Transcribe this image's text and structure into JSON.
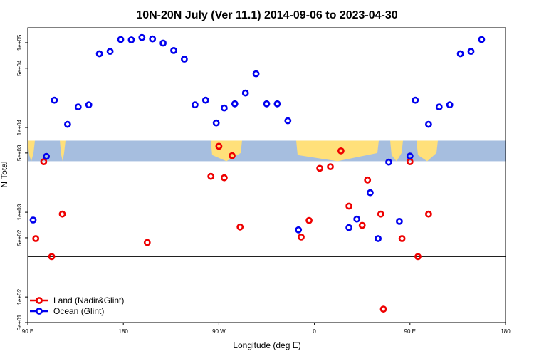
{
  "chart_data": {
    "type": "scatter",
    "title": "10N-20N July (Ver 11.1)   2014-09-06 to 2023-04-30",
    "xlabel": "Longitude (deg E)",
    "ylabel": "N Total",
    "xlim": [
      90,
      270
    ],
    "yscale": "log",
    "ylim": [
      50,
      150000
    ],
    "x_ticks": [
      {
        "value": 90,
        "label": "90 E"
      },
      {
        "value": 126,
        "label": "180"
      },
      {
        "value": 162,
        "label": "90 W"
      },
      {
        "value": 198,
        "label": "0"
      },
      {
        "value": 234,
        "label": "90 E"
      },
      {
        "value": 270,
        "label": "180"
      }
    ],
    "y_ticks": [
      {
        "value": 50,
        "label": "5e+01"
      },
      {
        "value": 100,
        "label": "1e+02"
      },
      {
        "value": 500,
        "label": "5e+02"
      },
      {
        "value": 1000,
        "label": "1e+03"
      },
      {
        "value": 5000,
        "label": "5e+03"
      },
      {
        "value": 10000,
        "label": "1e+04"
      },
      {
        "value": 50000,
        "label": "5e+04"
      },
      {
        "value": 100000,
        "label": "1e+05"
      }
    ],
    "reference_line": 300,
    "map_band": {
      "ymin": 4000,
      "ymax": 7000
    },
    "legend_position": "bottom-left",
    "series": [
      {
        "name": "Land (Nadir&Glint)",
        "color": "#ee0000",
        "points": [
          [
            93,
            490
          ],
          [
            96,
            3950
          ],
          [
            99,
            300
          ],
          [
            103,
            950
          ],
          [
            135,
            440
          ],
          [
            159,
            2650
          ],
          [
            162,
            6000
          ],
          [
            164,
            2550
          ],
          [
            167,
            4650
          ],
          [
            170,
            670
          ],
          [
            193,
            510
          ],
          [
            196,
            800
          ],
          [
            200,
            3300
          ],
          [
            204,
            3450
          ],
          [
            208,
            5300
          ],
          [
            211,
            1180
          ],
          [
            216,
            700
          ],
          [
            218,
            2400
          ],
          [
            223,
            950
          ],
          [
            224,
            72
          ],
          [
            231,
            490
          ],
          [
            234,
            3950
          ],
          [
            237,
            300
          ],
          [
            241,
            950
          ]
        ]
      },
      {
        "name": "Ocean (Glint)",
        "color": "#0000ee",
        "points": [
          [
            92,
            810
          ],
          [
            97,
            4550
          ],
          [
            100,
            21000
          ],
          [
            105,
            10900
          ],
          [
            109,
            17500
          ],
          [
            113,
            18500
          ],
          [
            117,
            74000
          ],
          [
            121,
            79000
          ],
          [
            125,
            109000
          ],
          [
            129,
            108000
          ],
          [
            133,
            115000
          ],
          [
            137,
            111000
          ],
          [
            141,
            99000
          ],
          [
            145,
            81000
          ],
          [
            149,
            64000
          ],
          [
            153,
            18500
          ],
          [
            157,
            21000
          ],
          [
            161,
            11300
          ],
          [
            164,
            17000
          ],
          [
            168,
            19000
          ],
          [
            172,
            25500
          ],
          [
            176,
            43000
          ],
          [
            180,
            19000
          ],
          [
            184,
            19000
          ],
          [
            188,
            12000
          ],
          [
            192,
            620
          ],
          [
            211,
            660
          ],
          [
            214,
            830
          ],
          [
            219,
            1700
          ],
          [
            222,
            490
          ],
          [
            226,
            3900
          ],
          [
            230,
            780
          ],
          [
            234,
            4600
          ],
          [
            236,
            21000
          ],
          [
            241,
            10900
          ],
          [
            245,
            17500
          ],
          [
            249,
            18500
          ],
          [
            253,
            74000
          ],
          [
            257,
            79000
          ],
          [
            261,
            109000
          ]
        ]
      }
    ]
  }
}
